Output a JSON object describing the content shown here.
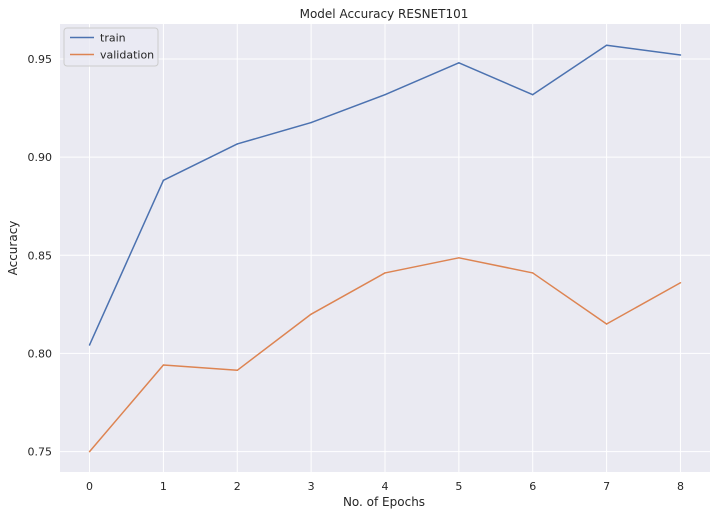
{
  "chart_data": {
    "type": "line",
    "title": "Model Accuracy RESNET101",
    "xlabel": "No. of Epochs",
    "ylabel": "Accuracy",
    "x": [
      0,
      1,
      2,
      3,
      4,
      5,
      6,
      7,
      8
    ],
    "xticks": [
      "0",
      "1",
      "2",
      "3",
      "4",
      "5",
      "6",
      "7",
      "8"
    ],
    "yticks": [
      0.75,
      0.8,
      0.85,
      0.9,
      0.95
    ],
    "ytick_labels": [
      "0.75",
      "0.80",
      "0.85",
      "0.90",
      "0.95"
    ],
    "xlim": [
      -0.4,
      8.4
    ],
    "ylim": [
      0.7396,
      0.9678
    ],
    "grid": true,
    "legend_position": "top-left",
    "series": [
      {
        "name": "train",
        "color": "#4c72b0",
        "values": [
          0.8043,
          0.8882,
          0.9067,
          0.9176,
          0.9318,
          0.948,
          0.9318,
          0.957,
          0.952
        ]
      },
      {
        "name": "validation",
        "color": "#dd8452",
        "values": [
          0.75,
          0.7941,
          0.7914,
          0.82,
          0.841,
          0.8487,
          0.841,
          0.815,
          0.836
        ]
      }
    ],
    "colors": {
      "plot_background": "#eaeaf2",
      "grid": "#ffffff",
      "text": "#262626"
    }
  }
}
